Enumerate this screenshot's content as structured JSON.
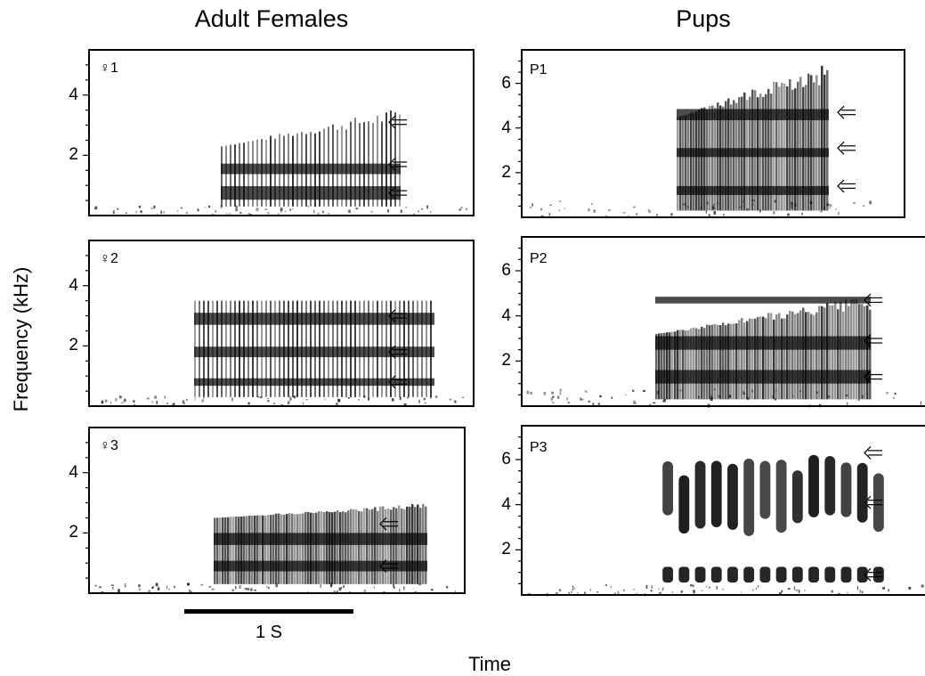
{
  "columns": {
    "left_title": "Adult Females",
    "right_title": "Pups"
  },
  "axis": {
    "ylabel": "Frequency (kHz)",
    "xlabel": "Time"
  },
  "scale_bar": {
    "label": "1 S",
    "duration_s": 1
  },
  "colors": {
    "ink": "#000000",
    "background": "#ffffff"
  },
  "panels": [
    {
      "id": "f1",
      "label": "♀1",
      "yticks": [
        "4",
        "2"
      ],
      "ymax_khz": 5.5,
      "arrows_khz": [
        3.1,
        1.7,
        0.75
      ],
      "arrow_icon": "left-arrow-icon"
    },
    {
      "id": "f2",
      "label": "♀2",
      "yticks": [
        "4",
        "2"
      ],
      "ymax_khz": 5.5,
      "arrows_khz": [
        3.0,
        1.8,
        0.8
      ],
      "arrow_icon": "left-arrow-icon"
    },
    {
      "id": "f3",
      "label": "♀3",
      "yticks": [
        "4",
        "2"
      ],
      "ymax_khz": 5.5,
      "arrows_khz": [
        2.3,
        0.9
      ],
      "arrow_icon": "left-arrow-icon"
    },
    {
      "id": "p1",
      "label": "P1",
      "yticks": [
        "6",
        "4",
        "2"
      ],
      "ymax_khz": 7.5,
      "arrows_khz": [
        4.7,
        3.1,
        1.4
      ],
      "arrow_icon": "left-arrow-icon"
    },
    {
      "id": "p2",
      "label": "P2",
      "yticks": [
        "6",
        "4",
        "2"
      ],
      "ymax_khz": 7.5,
      "arrows_khz": [
        4.7,
        2.9,
        1.3
      ],
      "arrow_icon": "left-arrow-icon"
    },
    {
      "id": "p3",
      "label": "P3",
      "yticks": [
        "6",
        "4",
        "2"
      ],
      "ymax_khz": 7.5,
      "arrows_khz": [
        6.3,
        4.1,
        0.9
      ],
      "arrow_icon": "left-arrow-icon"
    }
  ]
}
